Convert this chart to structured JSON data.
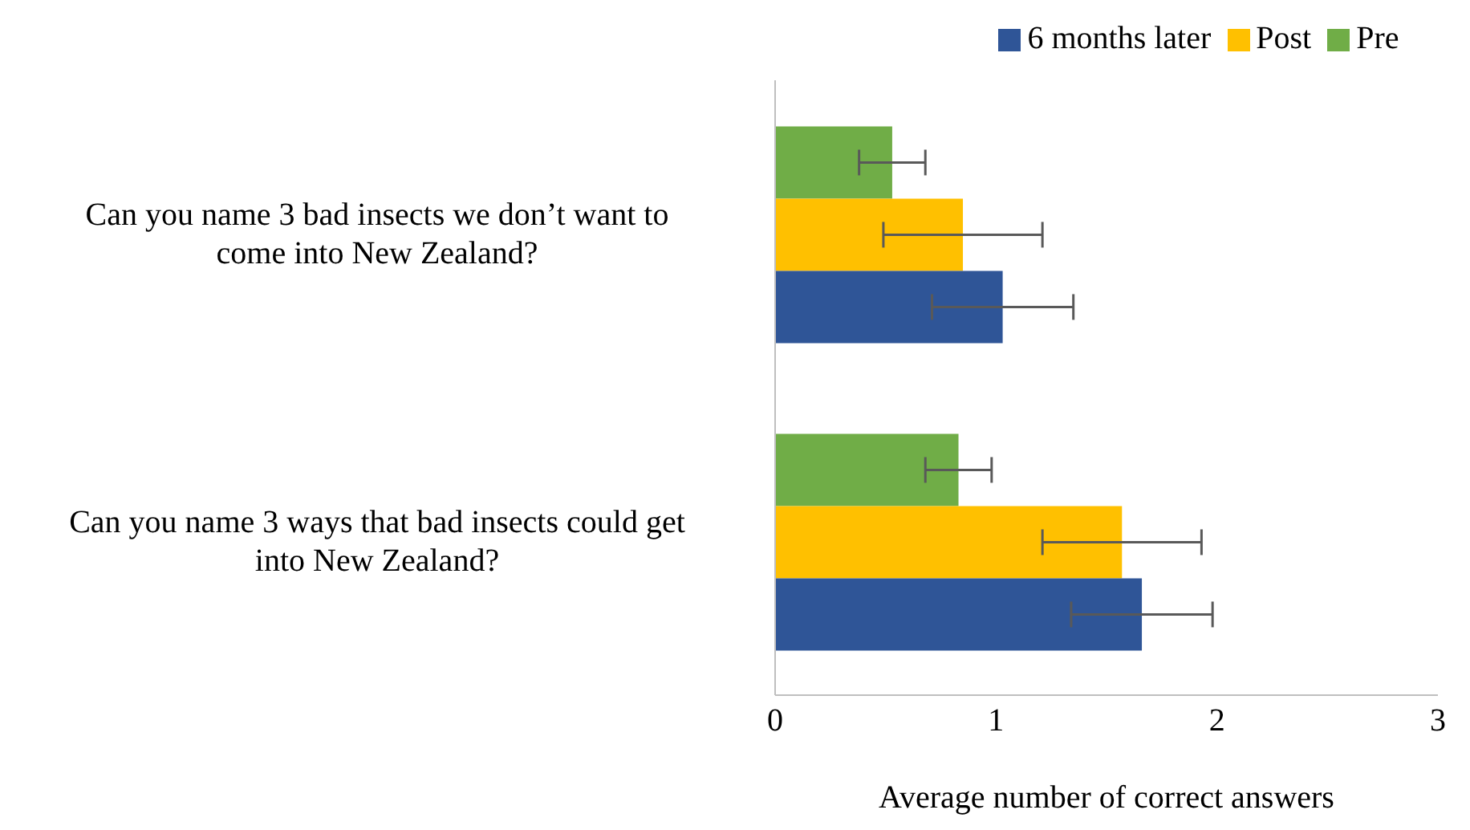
{
  "chart_data": {
    "type": "bar",
    "orientation": "horizontal",
    "xlabel": "Average number of correct answers",
    "categories": [
      "Can you name 3 bad insects we don’t want to come into New Zealand?",
      "Can you name 3 ways that bad insects could get into New Zealand?"
    ],
    "series": [
      {
        "name": "Pre",
        "color": "#70ad47",
        "values": [
          0.53,
          0.83
        ],
        "errors": [
          0.15,
          0.15
        ]
      },
      {
        "name": "Post",
        "color": "#ffc000",
        "values": [
          0.85,
          1.57
        ],
        "errors": [
          0.36,
          0.36
        ]
      },
      {
        "name": "6 months later",
        "color": "#2f5597",
        "values": [
          1.03,
          1.66
        ],
        "errors": [
          0.32,
          0.32
        ]
      }
    ],
    "xlim": [
      0,
      3
    ],
    "xticks": [
      0,
      1,
      2,
      3
    ],
    "grid": false,
    "legend": "top"
  }
}
